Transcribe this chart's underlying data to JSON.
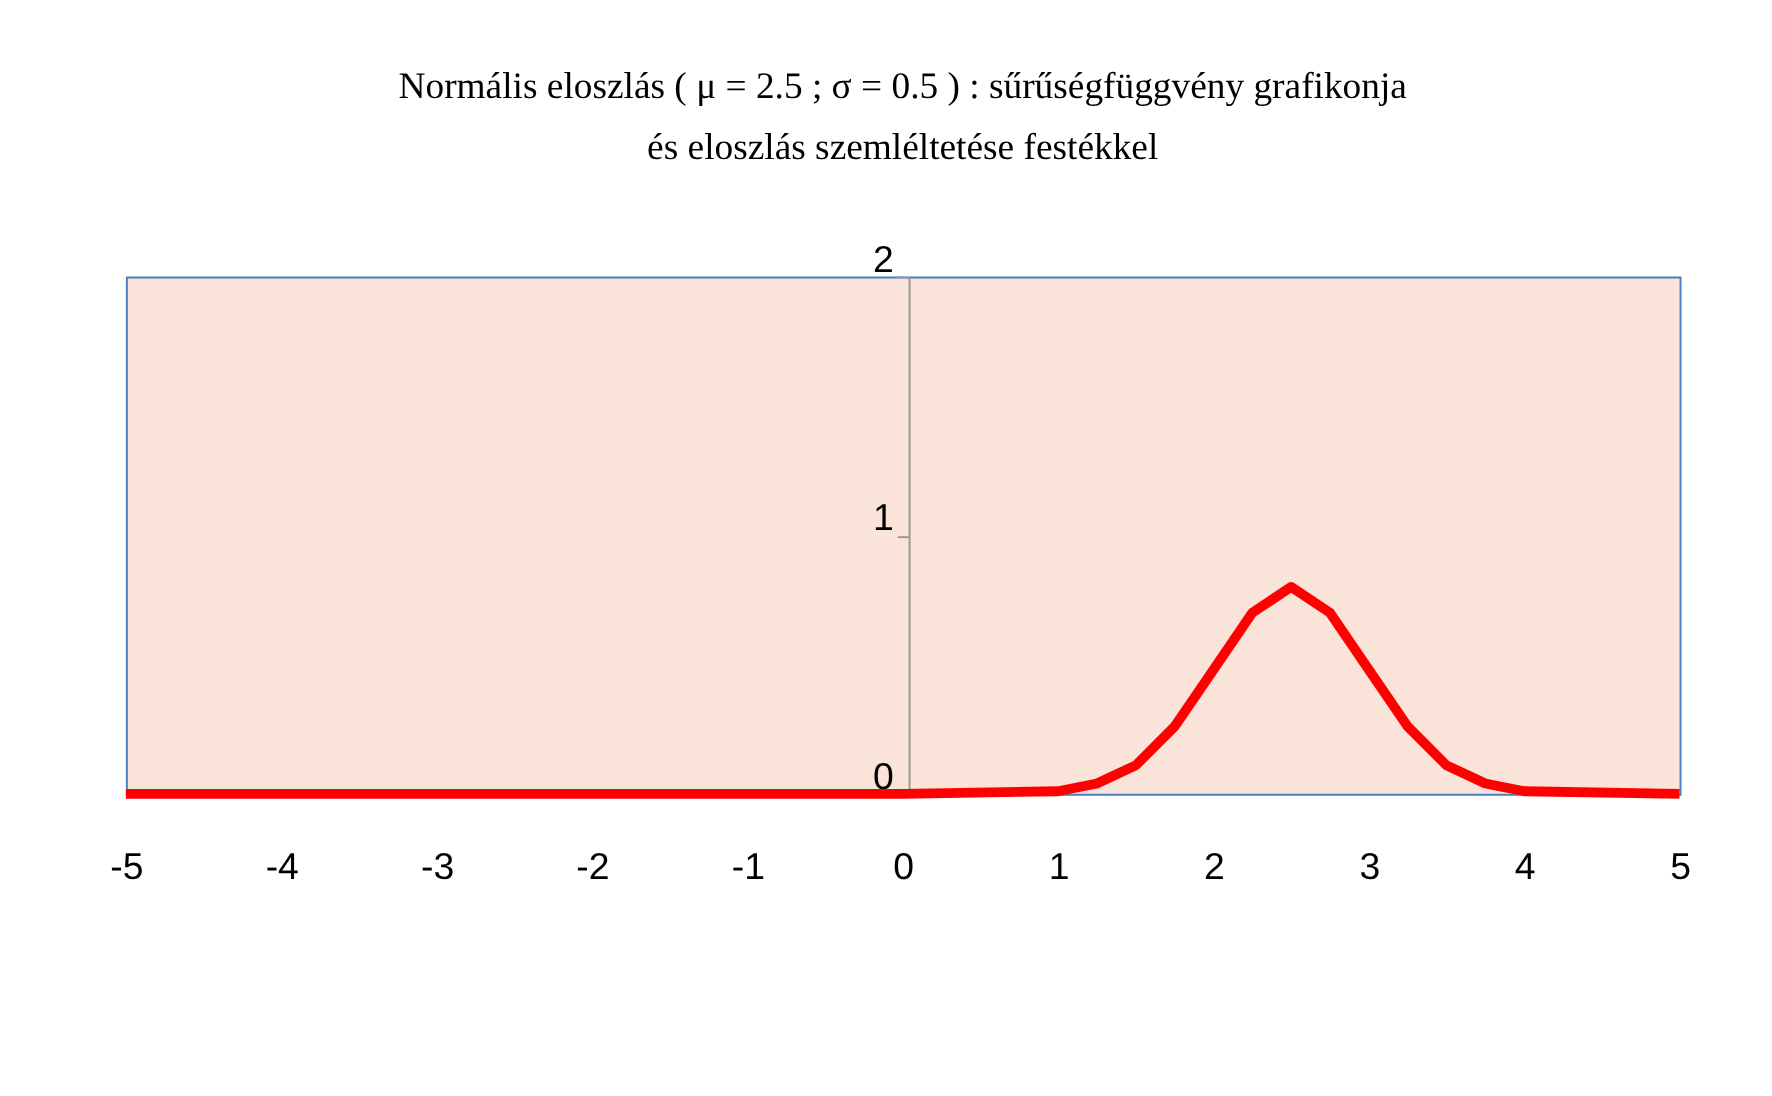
{
  "chart_data": {
    "type": "line",
    "title": "Normális eloszlás ( μ = 2.5 ; σ = 0.5 ) : sűrűségfüggvény grafikonja",
    "subtitle": "és eloszlás szemléltetése festékkel",
    "x": [
      -5,
      0,
      1,
      1.25,
      1.5,
      1.75,
      2,
      2.25,
      2.5,
      2.75,
      3,
      3.25,
      3.5,
      3.75,
      4,
      5
    ],
    "series": [
      {
        "color": "#ff0000",
        "values": [
          0,
          0,
          0.01,
          0.04,
          0.11,
          0.26,
          0.48,
          0.7,
          0.8,
          0.7,
          0.48,
          0.26,
          0.11,
          0.04,
          0.01,
          0
        ]
      }
    ],
    "xlim": [
      -5,
      5
    ],
    "xticks": [
      -5,
      -4,
      -3,
      -2,
      -1,
      0,
      1,
      2,
      3,
      4,
      5
    ],
    "ylim": [
      0,
      2
    ],
    "yticks": [
      0,
      1,
      2
    ],
    "grid": false,
    "legend": false,
    "marker": "none",
    "line_style": "solid"
  }
}
